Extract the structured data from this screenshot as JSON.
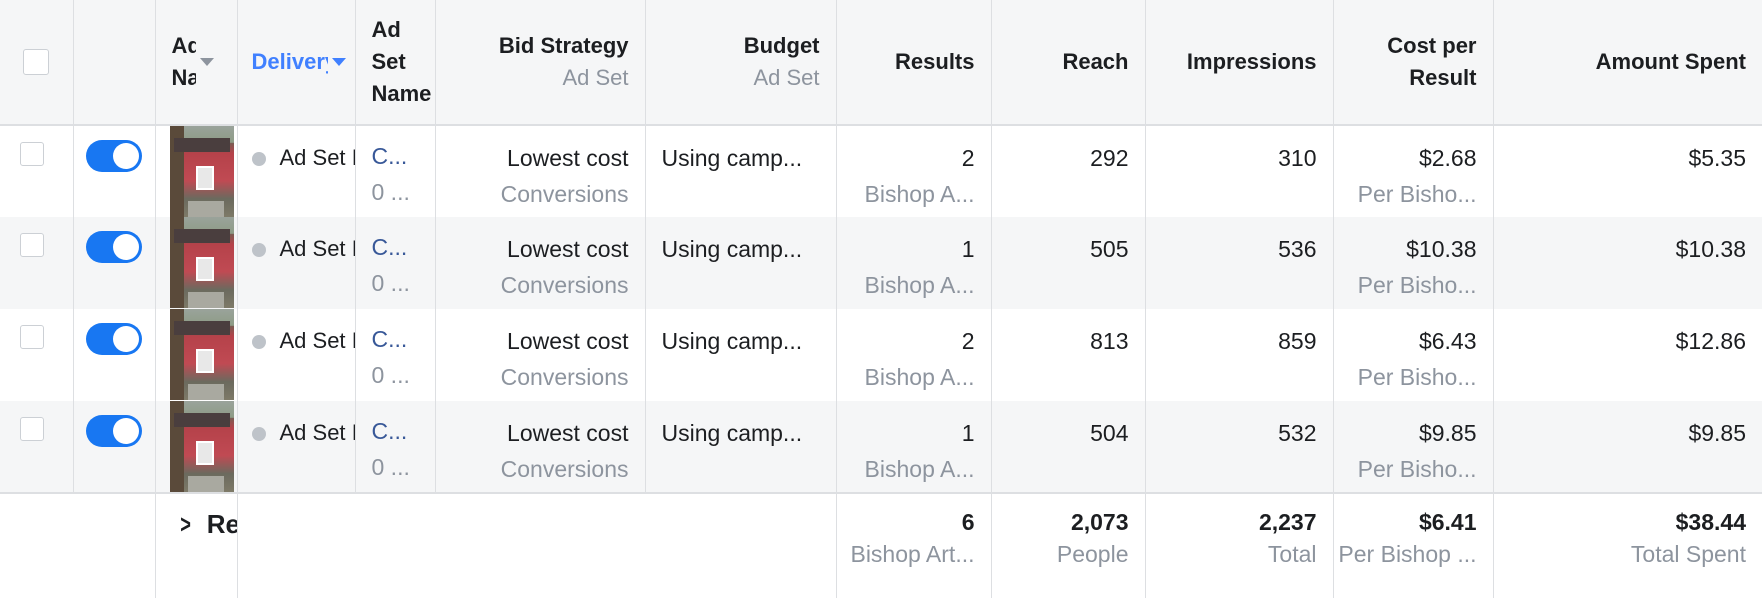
{
  "columns": {
    "ad_name": "Ad Name",
    "delivery": "Delivery",
    "ad_set_name": "Ad Set Name",
    "bid_strategy": "Bid Strategy",
    "bid_strategy_sub": "Ad Set",
    "budget": "Budget",
    "budget_sub": "Ad Set",
    "results": "Results",
    "reach": "Reach",
    "impressions": "Impressions",
    "cost_per_result": "Cost per Result",
    "amount_spent": "Amount Spent"
  },
  "rows": [
    {
      "delivery": "Ad Set Inactive",
      "ad_set_line1": "C...",
      "ad_set_line2": "0 ...",
      "bid": "Lowest cost",
      "bid_sub": "Conversions",
      "budget": "Using camp...",
      "results": "2",
      "results_sub": "Bishop A...",
      "reach": "292",
      "impressions": "310",
      "cpr": "$2.68",
      "cpr_sub": "Per Bisho...",
      "spent": "$5.35"
    },
    {
      "delivery": "Ad Set Inactive",
      "ad_set_line1": "C...",
      "ad_set_line2": "0 ...",
      "bid": "Lowest cost",
      "bid_sub": "Conversions",
      "budget": "Using camp...",
      "results": "1",
      "results_sub": "Bishop A...",
      "reach": "505",
      "impressions": "536",
      "cpr": "$10.38",
      "cpr_sub": "Per Bisho...",
      "spent": "$10.38"
    },
    {
      "delivery": "Ad Set Inactive",
      "ad_set_line1": "C...",
      "ad_set_line2": "0 ...",
      "bid": "Lowest cost",
      "bid_sub": "Conversions",
      "budget": "Using camp...",
      "results": "2",
      "results_sub": "Bishop A...",
      "reach": "813",
      "impressions": "859",
      "cpr": "$6.43",
      "cpr_sub": "Per Bisho...",
      "spent": "$12.86"
    },
    {
      "delivery": "Ad Set Inactive",
      "ad_set_line1": "C...",
      "ad_set_line2": "0 ...",
      "bid": "Lowest cost",
      "bid_sub": "Conversions",
      "budget": "Using camp...",
      "results": "1",
      "results_sub": "Bishop A...",
      "reach": "504",
      "impressions": "532",
      "cpr": "$9.85",
      "cpr_sub": "Per Bisho...",
      "spent": "$9.85"
    }
  ],
  "totals": {
    "label": "Results",
    "results": "6",
    "results_sub": "Bishop Art...",
    "reach": "2,073",
    "reach_sub": "People",
    "impressions": "2,237",
    "impressions_sub": "Total",
    "cpr": "$6.41",
    "cpr_sub": "Per Bishop ...",
    "spent": "$38.44",
    "spent_sub": "Total Spent"
  },
  "icons": {
    "sort": "caret-down-icon",
    "expand": "chevron-right-icon",
    "toggle": "toggle-on-icon"
  },
  "colors": {
    "accent": "#1877f2",
    "link": "#385898",
    "header_sort": "#4080ff"
  }
}
